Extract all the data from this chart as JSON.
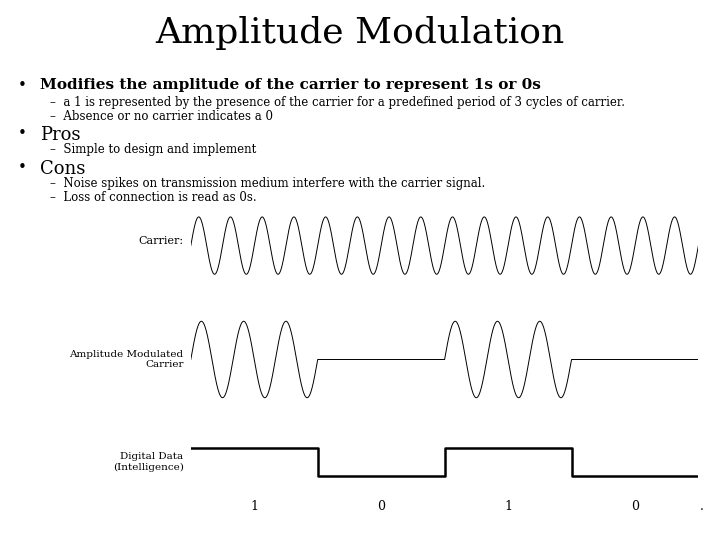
{
  "title": "Amplitude Modulation",
  "title_fontsize": 26,
  "title_font": "serif",
  "bg_color": "#ffffff",
  "bullet_color": "#000000",
  "bullet1_text": "Modifies the amplitude of the carrier to represent 1s or 0s",
  "sub_bullets_1": [
    "a 1 is represented by the presence of the carrier for a predefined period of 3 cycles of carrier.",
    "Absence or no carrier indicates a 0"
  ],
  "bullet2_text": "Pros",
  "sub_bullets_2": [
    "Simple to design and implement"
  ],
  "bullet3_text": "Cons",
  "sub_bullets_3": [
    "Noise spikes on transmission medium interfere with the carrier signal.",
    "Loss of connection is read as 0s."
  ],
  "carrier_label": "Carrier:",
  "amc_label": "Amplitude Modulated\nCarrier",
  "digital_label": "Digital Data\n(Intelligence)",
  "digital_values": [
    "1",
    "0",
    "1",
    "0",
    "."
  ],
  "carrier_freq": 16,
  "signal_pattern": [
    1,
    0,
    1,
    0
  ],
  "burst_freq": 12
}
